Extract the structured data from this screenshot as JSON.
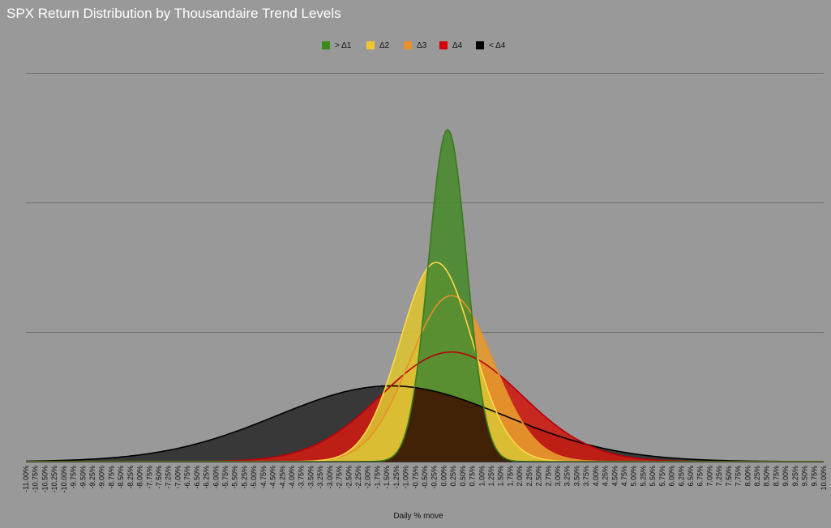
{
  "chart_data": {
    "type": "area",
    "title": "SPX Return Distribution by Thousandaire Trend Levels",
    "xlabel": "Daily % move",
    "ylabel": "",
    "grid": true,
    "legend_position": "top-center",
    "x_min": -11.0,
    "x_max": 10.0,
    "y_max": 1.0,
    "x_tick_labels": [
      "-11.00%",
      "-10.75%",
      "-10.50%",
      "-10.25%",
      "-10.00%",
      "-9.75%",
      "-9.50%",
      "-9.25%",
      "-9.00%",
      "-8.75%",
      "-8.50%",
      "-8.25%",
      "-8.00%",
      "-7.75%",
      "-7.50%",
      "-7.25%",
      "-7.00%",
      "-6.75%",
      "-6.50%",
      "-6.25%",
      "-6.00%",
      "-5.75%",
      "-5.50%",
      "-5.25%",
      "-5.00%",
      "-4.75%",
      "-4.50%",
      "-4.25%",
      "-4.00%",
      "-3.75%",
      "-3.50%",
      "-3.25%",
      "-3.00%",
      "-2.75%",
      "-2.50%",
      "-2.25%",
      "-2.00%",
      "-1.75%",
      "-1.50%",
      "-1.25%",
      "-1.00%",
      "-0.75%",
      "-0.50%",
      "-0.25%",
      "0.00%",
      "0.25%",
      "0.50%",
      "0.75%",
      "1.00%",
      "1.25%",
      "1.50%",
      "1.75%",
      "2.00%",
      "2.25%",
      "2.50%",
      "2.75%",
      "3.00%",
      "3.25%",
      "3.50%",
      "3.75%",
      "4.00%",
      "4.25%",
      "4.50%",
      "4.75%",
      "5.00%",
      "5.25%",
      "5.50%",
      "5.75%",
      "6.00%",
      "6.25%",
      "6.50%",
      "6.75%",
      "7.00%",
      "7.25%",
      "7.50%",
      "7.75%",
      "8.00%",
      "8.25%",
      "8.50%",
      "8.75%",
      "9.00%",
      "9.25%",
      "9.50%",
      "9.75%",
      "10.00%"
    ],
    "series": [
      {
        "name": "< Δ4",
        "mean": -1.4,
        "sd": 3.0,
        "peak": 0.228,
        "fill": "#2e2e2e",
        "stroke": "#000000"
      },
      {
        "name": "Δ4",
        "mean": 0.2,
        "sd": 1.85,
        "peak": 0.33,
        "fill": "#cc1c12",
        "stroke": "#b8000a"
      },
      {
        "name": "Δ3",
        "mean": 0.2,
        "sd": 1.1,
        "peak": 0.5,
        "fill": "#e69a2e",
        "stroke": "#e8902a"
      },
      {
        "name": "Δ2",
        "mean": -0.2,
        "sd": 0.95,
        "peak": 0.6,
        "fill": "#d9c234",
        "stroke": "#ffd84a"
      },
      {
        "name": "> Δ1",
        "mean": 0.1,
        "sd": 0.5,
        "peak": 1.0,
        "fill": "#4a8a30",
        "stroke": "#3a7a1e"
      }
    ],
    "legend": [
      {
        "label": "> Δ1",
        "color": "#3a8a1a"
      },
      {
        "label": "Δ2",
        "color": "#f2c530"
      },
      {
        "label": "Δ3",
        "color": "#e8902a"
      },
      {
        "label": "Δ4",
        "color": "#d4000a"
      },
      {
        "label": "< Δ4",
        "color": "#000000"
      }
    ],
    "overlap_fill": "#3d0f00"
  }
}
